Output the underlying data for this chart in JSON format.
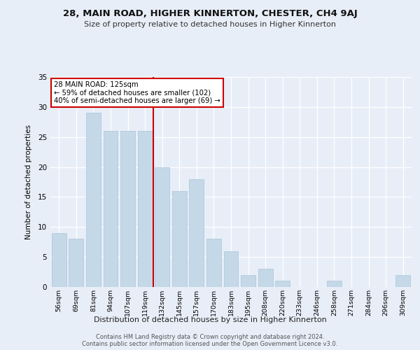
{
  "title": "28, MAIN ROAD, HIGHER KINNERTON, CHESTER, CH4 9AJ",
  "subtitle": "Size of property relative to detached houses in Higher Kinnerton",
  "xlabel": "Distribution of detached houses by size in Higher Kinnerton",
  "ylabel": "Number of detached properties",
  "categories": [
    "56sqm",
    "69sqm",
    "81sqm",
    "94sqm",
    "107sqm",
    "119sqm",
    "132sqm",
    "145sqm",
    "157sqm",
    "170sqm",
    "183sqm",
    "195sqm",
    "208sqm",
    "220sqm",
    "233sqm",
    "246sqm",
    "258sqm",
    "271sqm",
    "284sqm",
    "296sqm",
    "309sqm"
  ],
  "values": [
    9,
    8,
    29,
    26,
    26,
    26,
    20,
    16,
    18,
    8,
    6,
    2,
    3,
    1,
    0,
    0,
    1,
    0,
    0,
    0,
    2
  ],
  "bar_color": "#c5d8e8",
  "bar_edge_color": "#a8c4d8",
  "highlight_index": 6,
  "highlight_line_color": "#cc0000",
  "annotation_text": "28 MAIN ROAD: 125sqm\n← 59% of detached houses are smaller (102)\n40% of semi-detached houses are larger (69) →",
  "annotation_box_color": "#ffffff",
  "annotation_box_edge": "#cc0000",
  "ylim": [
    0,
    35
  ],
  "yticks": [
    0,
    5,
    10,
    15,
    20,
    25,
    30,
    35
  ],
  "background_color": "#e8eef8",
  "fig_background_color": "#e8eef8",
  "grid_color": "#ffffff",
  "footer_line1": "Contains HM Land Registry data © Crown copyright and database right 2024.",
  "footer_line2": "Contains public sector information licensed under the Open Government Licence v3.0."
}
